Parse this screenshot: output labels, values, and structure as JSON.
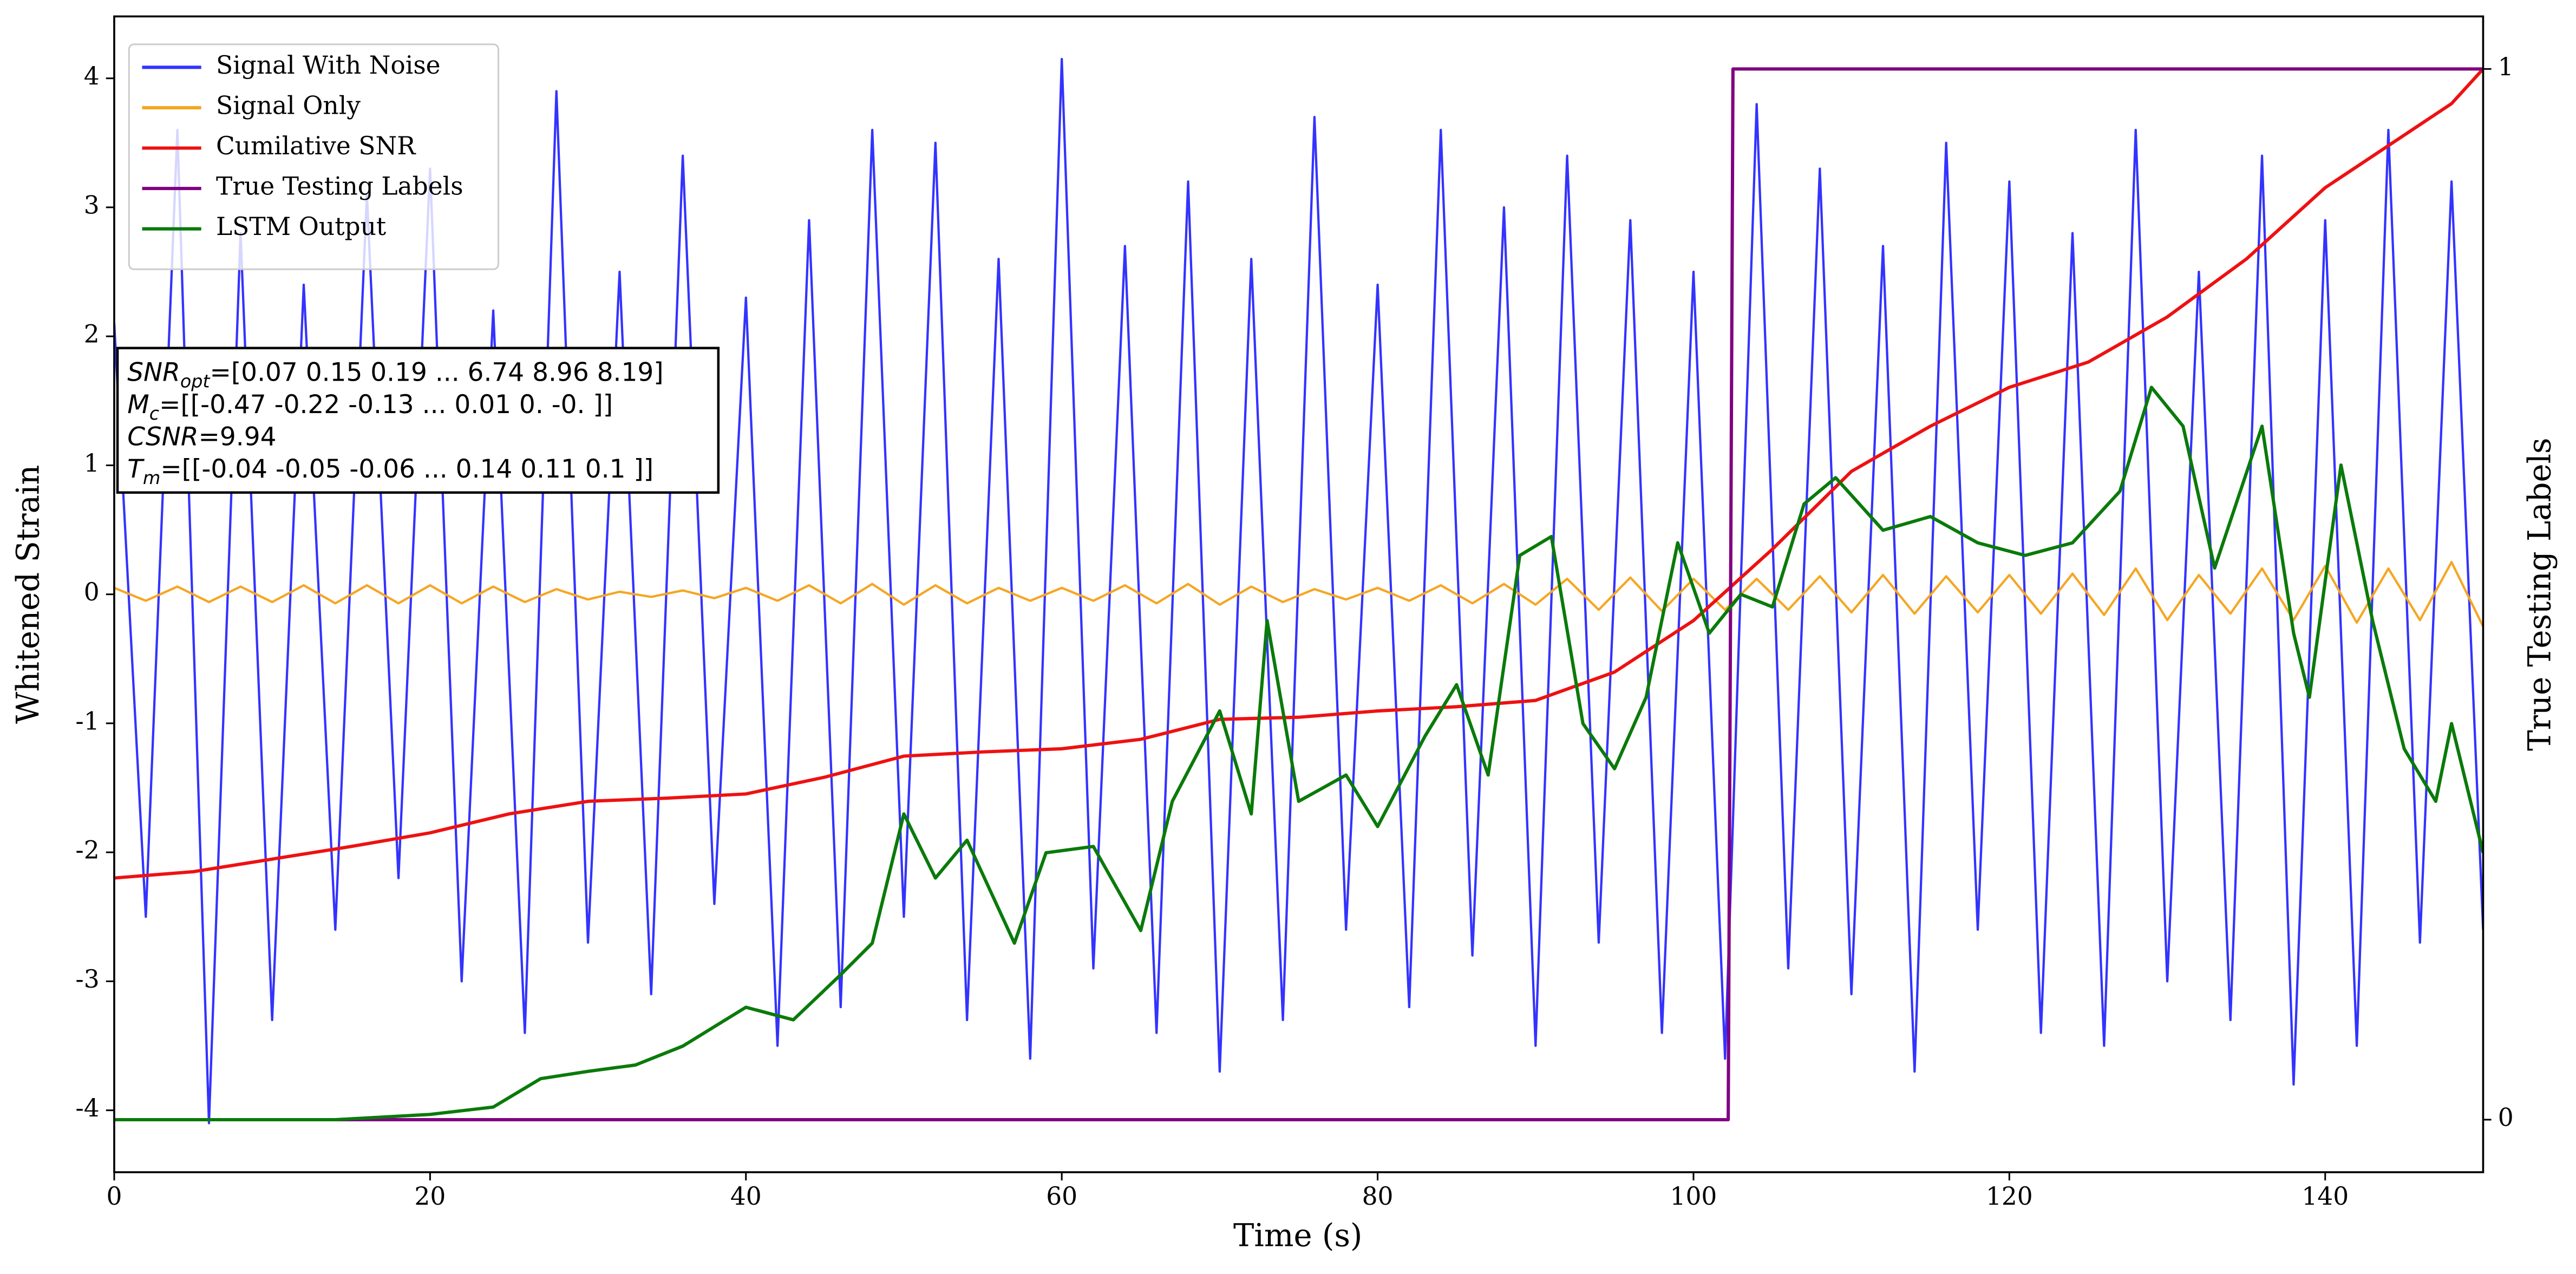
{
  "chart_data": {
    "type": "line",
    "xlabel": "Time (s)",
    "ylabel": "Whitened Strain",
    "y2label": "True Testing Labels",
    "xlim": [
      0,
      150
    ],
    "xticks": [
      0,
      20,
      40,
      60,
      80,
      100,
      120,
      140
    ],
    "ylim": [
      -4.48,
      4.48
    ],
    "yticks": [
      -4,
      -3,
      -2,
      -1,
      0,
      1,
      2,
      3,
      4
    ],
    "y2lim": [
      -0.05,
      1.05
    ],
    "y2ticks": [
      0,
      1
    ],
    "grid": false,
    "legend": "upper left",
    "series": [
      {
        "name": "Signal With Noise",
        "color": "#3333ff",
        "x": [
          0,
          2,
          4,
          6,
          8,
          10,
          12,
          14,
          16,
          18,
          20,
          22,
          24,
          26,
          28,
          30,
          32,
          34,
          36,
          38,
          40,
          42,
          44,
          46,
          48,
          50,
          52,
          54,
          56,
          58,
          60,
          62,
          64,
          66,
          68,
          70,
          72,
          74,
          76,
          78,
          80,
          82,
          84,
          86,
          88,
          90,
          92,
          94,
          96,
          98,
          100,
          102,
          104,
          106,
          108,
          110,
          112,
          114,
          116,
          118,
          120,
          122,
          124,
          126,
          128,
          130,
          132,
          134,
          136,
          138,
          140,
          142,
          144,
          146,
          148,
          150
        ],
        "values": [
          2.1,
          -2.5,
          3.6,
          -4.1,
          2.8,
          -3.3,
          2.4,
          -2.6,
          3.1,
          -2.2,
          3.3,
          -3.0,
          2.2,
          -3.4,
          3.9,
          -2.7,
          2.5,
          -3.1,
          3.4,
          -2.4,
          2.3,
          -3.5,
          2.9,
          -3.2,
          3.6,
          -2.5,
          3.5,
          -3.3,
          2.6,
          -3.6,
          4.15,
          -2.9,
          2.7,
          -3.4,
          3.2,
          -3.7,
          2.6,
          -3.3,
          3.7,
          -2.6,
          2.4,
          -3.2,
          3.6,
          -2.8,
          3.0,
          -3.5,
          3.4,
          -2.7,
          2.9,
          -3.4,
          2.5,
          -3.6,
          3.8,
          -2.9,
          3.3,
          -3.1,
          2.7,
          -3.7,
          3.5,
          -2.6,
          3.2,
          -3.4,
          2.8,
          -3.5,
          3.6,
          -3.0,
          2.5,
          -3.3,
          3.4,
          -3.8,
          2.9,
          -3.5,
          3.6,
          -2.7,
          3.2,
          -2.6
        ]
      },
      {
        "name": "Signal Only",
        "color": "#f5a623",
        "x": [
          0,
          2,
          4,
          6,
          8,
          10,
          12,
          14,
          16,
          18,
          20,
          22,
          24,
          26,
          28,
          30,
          32,
          34,
          36,
          38,
          40,
          42,
          44,
          46,
          48,
          50,
          52,
          54,
          56,
          58,
          60,
          62,
          64,
          66,
          68,
          70,
          72,
          74,
          76,
          78,
          80,
          82,
          84,
          86,
          88,
          90,
          92,
          94,
          96,
          98,
          100,
          102,
          104,
          106,
          108,
          110,
          112,
          114,
          116,
          118,
          120,
          122,
          124,
          126,
          128,
          130,
          132,
          134,
          136,
          138,
          140,
          142,
          144,
          146,
          148,
          150
        ],
        "values": [
          0.05,
          -0.05,
          0.06,
          -0.06,
          0.06,
          -0.06,
          0.07,
          -0.07,
          0.07,
          -0.07,
          0.07,
          -0.07,
          0.06,
          -0.06,
          0.04,
          -0.04,
          0.02,
          -0.02,
          0.03,
          -0.03,
          0.05,
          -0.05,
          0.07,
          -0.07,
          0.08,
          -0.08,
          0.07,
          -0.07,
          0.05,
          -0.05,
          0.05,
          -0.05,
          0.07,
          -0.07,
          0.08,
          -0.08,
          0.06,
          -0.06,
          0.04,
          -0.04,
          0.05,
          -0.05,
          0.07,
          -0.07,
          0.08,
          -0.08,
          0.12,
          -0.12,
          0.13,
          -0.13,
          0.12,
          -0.12,
          0.12,
          -0.12,
          0.14,
          -0.14,
          0.15,
          -0.15,
          0.14,
          -0.14,
          0.15,
          -0.15,
          0.16,
          -0.16,
          0.2,
          -0.2,
          0.15,
          -0.15,
          0.2,
          -0.2,
          0.22,
          -0.22,
          0.2,
          -0.2,
          0.25,
          -0.25
        ]
      },
      {
        "name": "Cumilative SNR",
        "color": "#ee1111",
        "axis": "y2",
        "x": [
          0,
          5,
          10,
          15,
          20,
          25,
          30,
          35,
          40,
          45,
          50,
          55,
          60,
          65,
          70,
          75,
          80,
          85,
          90,
          95,
          100,
          105,
          110,
          115,
          120,
          125,
          130,
          135,
          140,
          145,
          148,
          150
        ],
        "values": [
          0.23,
          0.236,
          0.248,
          0.26,
          0.273,
          0.291,
          0.303,
          0.306,
          0.31,
          0.326,
          0.346,
          0.35,
          0.353,
          0.362,
          0.381,
          0.383,
          0.389,
          0.393,
          0.399,
          0.426,
          0.475,
          0.543,
          0.617,
          0.66,
          0.697,
          0.721,
          0.764,
          0.819,
          0.887,
          0.937,
          0.967,
          1.0
        ]
      },
      {
        "name": "True Testing Labels",
        "color": "#800080",
        "axis": "y2",
        "x": [
          0,
          102.2,
          102.5,
          150
        ],
        "values": [
          0,
          0,
          1,
          1
        ]
      },
      {
        "name": "LSTM Output",
        "color": "#0a7a0a",
        "axis": "y2",
        "x": [
          0,
          14,
          20,
          24,
          27,
          30,
          33,
          36,
          40,
          43,
          46,
          48,
          50,
          52,
          54,
          57,
          59,
          62,
          65,
          67,
          70,
          72,
          73,
          75,
          78,
          80,
          83,
          85,
          87,
          89,
          91,
          93,
          95,
          97,
          99,
          101,
          103,
          105,
          107,
          109,
          112,
          115,
          118,
          121,
          124,
          127,
          129,
          131,
          133,
          136,
          138,
          139,
          141,
          143,
          145,
          147,
          148,
          150
        ],
        "values": [
          0,
          0,
          0.005,
          0.012,
          0.039,
          0.046,
          0.052,
          0.07,
          0.107,
          0.095,
          0.138,
          0.168,
          0.291,
          0.23,
          0.266,
          0.168,
          0.254,
          0.26,
          0.18,
          0.303,
          0.389,
          0.291,
          0.475,
          0.303,
          0.328,
          0.279,
          0.365,
          0.414,
          0.328,
          0.537,
          0.555,
          0.377,
          0.334,
          0.402,
          0.549,
          0.463,
          0.5,
          0.488,
          0.586,
          0.611,
          0.561,
          0.574,
          0.549,
          0.537,
          0.549,
          0.598,
          0.697,
          0.66,
          0.525,
          0.66,
          0.463,
          0.402,
          0.623,
          0.475,
          0.353,
          0.303,
          0.377,
          0.254
        ]
      }
    ],
    "annotation": [
      {
        "symbol": "SNR",
        "sub": "opt",
        "text": "=[0.07 0.15 0.19 ... 6.74 8.96 8.19]"
      },
      {
        "symbol": "M",
        "sub": "c",
        "text": "=[[-0.47 -0.22 -0.13 ...  0.01  0.   -0.  ]]"
      },
      {
        "symbol": "CSNR",
        "text": "=9.94"
      },
      {
        "symbol": "T",
        "sub": "m",
        "text": "=[[-0.04 -0.05 -0.06 ...  0.14  0.11  0.1 ]]"
      }
    ]
  }
}
